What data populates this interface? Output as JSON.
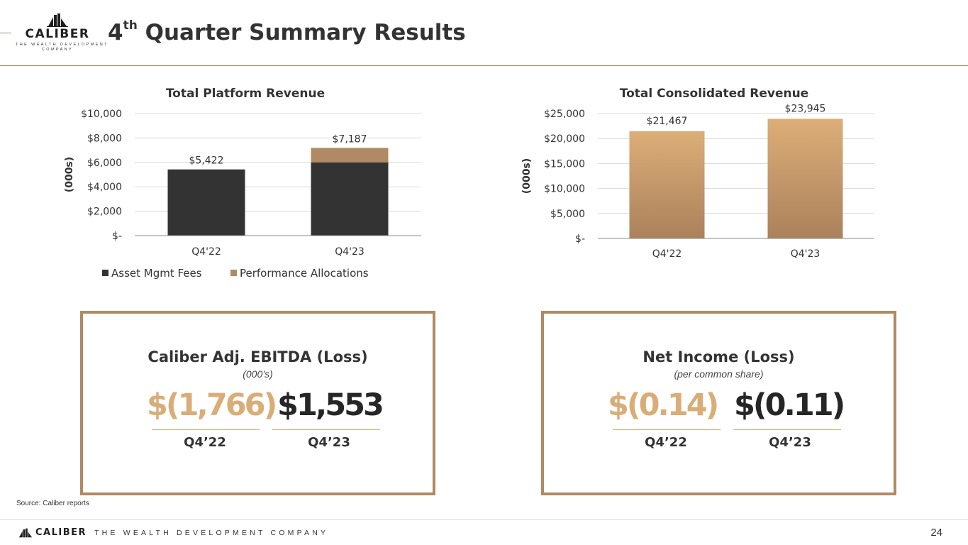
{
  "header": {
    "logo": {
      "name": "CALIBER",
      "line1": "THE WEALTH DEVELOPMENT",
      "line2": "COMPANY"
    },
    "title_prefix": "4",
    "title_sup": "th",
    "title_rest": " Quarter Summary Results"
  },
  "colors": {
    "accent": "#b08a64",
    "dark": "#333333",
    "gold": "#d9ad77"
  },
  "chart_data": [
    {
      "type": "bar",
      "title": "Total Platform Revenue",
      "ylabel": "(000s)",
      "categories": [
        "Q4'22",
        "Q4'23"
      ],
      "series": [
        {
          "name": "Asset Mgmt Fees",
          "values": [
            5422,
            6000
          ],
          "color": "#333333"
        },
        {
          "name": "Performance Allocations",
          "values": [
            0,
            1187
          ],
          "color": "#b08a64"
        }
      ],
      "totals": [
        5422,
        7187
      ],
      "total_labels": [
        "$5,422",
        "$7,187"
      ],
      "ylim": [
        0,
        10000
      ],
      "ticks": [
        0,
        2000,
        4000,
        6000,
        8000,
        10000
      ],
      "tick_labels": [
        "$-",
        "$2,000",
        "$4,000",
        "$6,000",
        "$8,000",
        "$10,000"
      ],
      "grid": true,
      "stacked": true,
      "legend": "bottom"
    },
    {
      "type": "bar",
      "title": "Total Consolidated Revenue",
      "ylabel": "(000s)",
      "categories": [
        "Q4'22",
        "Q4'23"
      ],
      "values": [
        21467,
        23945
      ],
      "value_labels": [
        "$21,467",
        "$23,945"
      ],
      "ylim": [
        0,
        25000
      ],
      "ticks": [
        0,
        5000,
        10000,
        15000,
        20000,
        25000
      ],
      "tick_labels": [
        "$-",
        "$5,000",
        "$10,000",
        "$15,000",
        "$20,000",
        "$25,000"
      ],
      "grid": true,
      "bar_gradient": [
        "#dcae78",
        "#ab815c"
      ]
    }
  ],
  "ebitda": {
    "title": "Caliber Adj. EBITDA (Loss)",
    "subtitle": "(000’s)",
    "prior_value": "$(1,766)",
    "current_value": "$1,553",
    "prior_label": "Q4’22",
    "current_label": "Q4’23"
  },
  "net_income": {
    "title": "Net Income (Loss)",
    "subtitle": "(per common share)",
    "prior_value": "$(0.14)",
    "current_value": "$(0.11)",
    "prior_label": "Q4’22",
    "current_label": "Q4’23"
  },
  "footer": {
    "source": "Source: Caliber reports",
    "brand": "CALIBER",
    "tagline": "THE WEALTH DEVELOPMENT COMPANY",
    "page_number": "24"
  }
}
